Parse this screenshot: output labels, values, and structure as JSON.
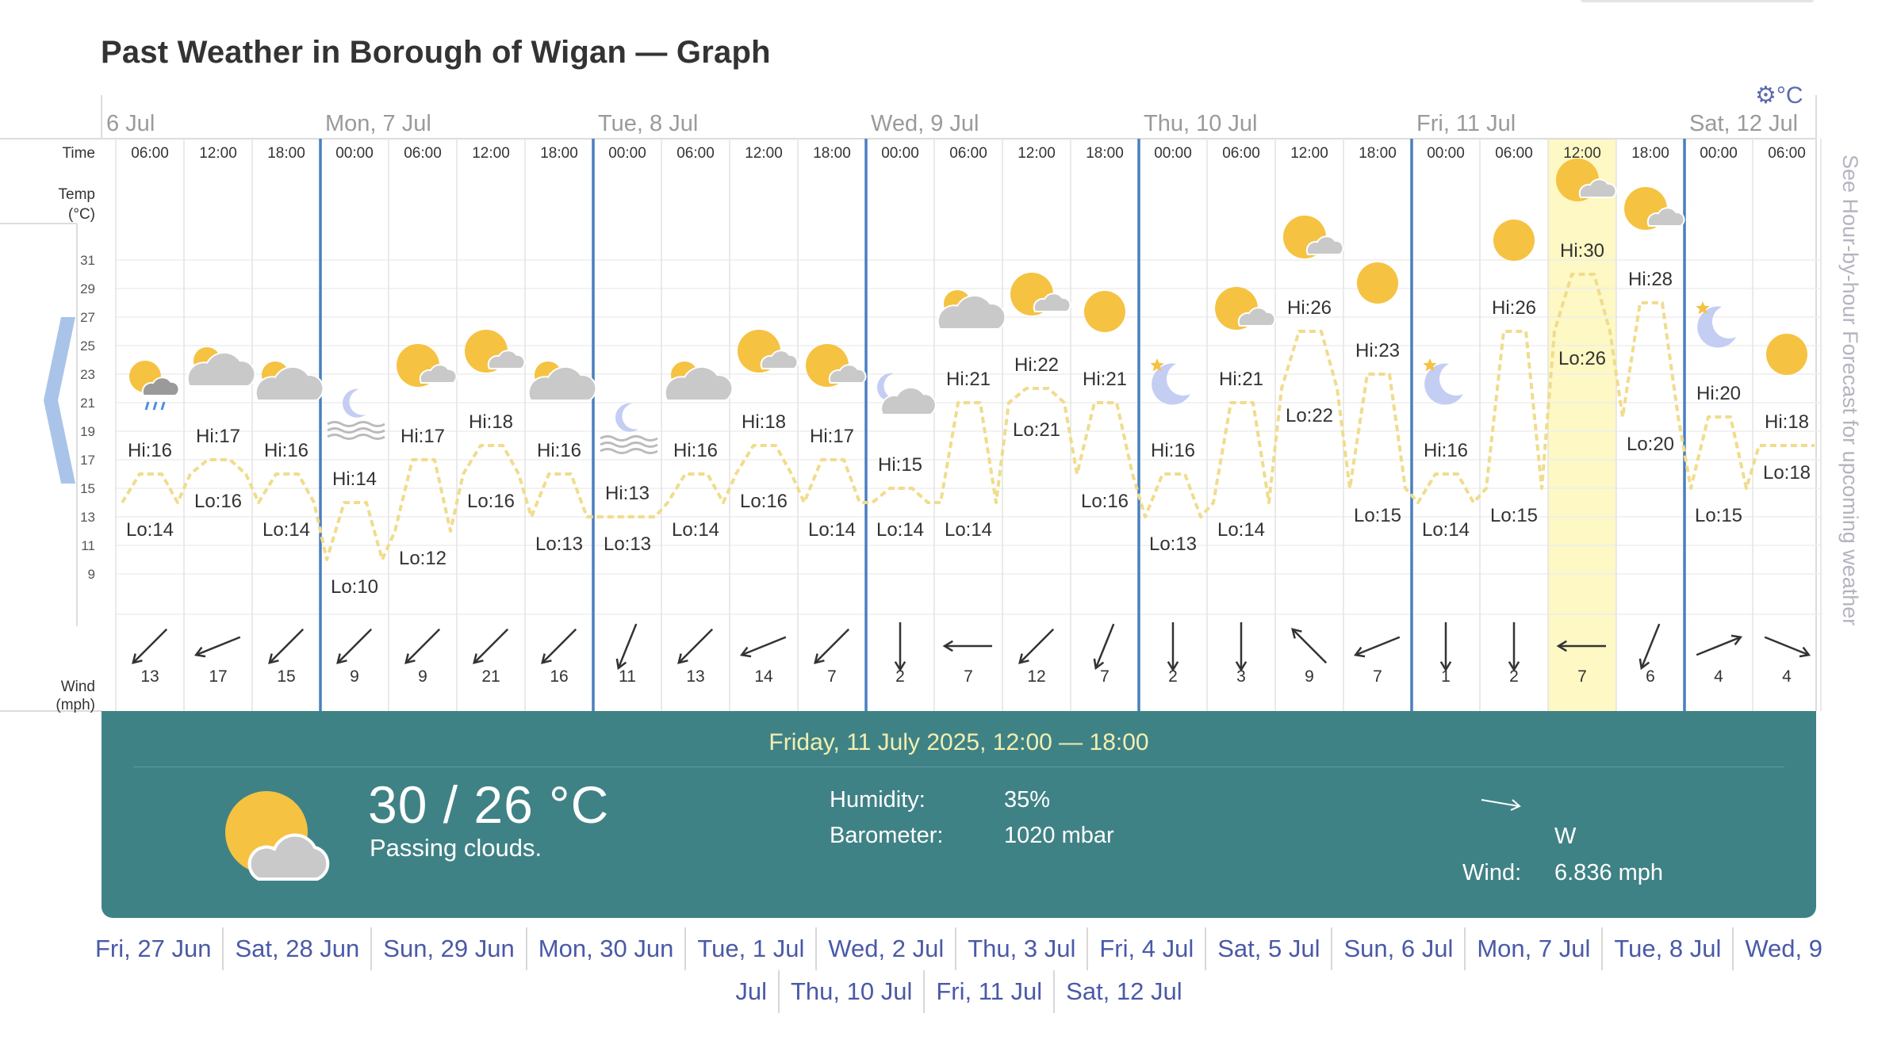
{
  "title": "Past Weather in Borough of Wigan — Graph",
  "unit_label": "°C",
  "side_link": "See Hour-by-hour Forecast for upcoming weather",
  "row_labels": {
    "time": "Time",
    "temp": "Temp",
    "temp_unit": "(°C)",
    "wind": "Wind",
    "wind_unit": "(mph)"
  },
  "days": [
    "6 Jul",
    "Mon, 7 Jul",
    "Tue, 8 Jul",
    "Wed, 9 Jul",
    "Thu, 10 Jul",
    "Fri, 11 Jul",
    "Sat, 12 Jul"
  ],
  "temp_ticks": [
    31,
    29,
    27,
    25,
    23,
    21,
    19,
    17,
    15,
    13,
    11,
    9
  ],
  "columns": [
    {
      "time": "06:00",
      "icon": "partly-sunny-rain-icon",
      "hi": "Hi:16",
      "lo": "Lo:14",
      "hi_t": 16,
      "lo_t": 14,
      "wind": "13",
      "dir": "SE"
    },
    {
      "time": "12:00",
      "icon": "cloud-sun-icon",
      "hi": "Hi:17",
      "lo": "Lo:16",
      "hi_t": 17,
      "lo_t": 16,
      "wind": "17",
      "dir": "ESE"
    },
    {
      "time": "18:00",
      "icon": "cloud-sun-icon",
      "hi": "Hi:16",
      "lo": "Lo:14",
      "hi_t": 16,
      "lo_t": 14,
      "wind": "15",
      "dir": "SE"
    },
    {
      "time": "00:00",
      "icon": "moon-fog-icon",
      "hi": "Hi:14",
      "lo": "Lo:10",
      "hi_t": 14,
      "lo_t": 10,
      "wind": "9",
      "dir": "SE"
    },
    {
      "time": "06:00",
      "icon": "sun-cloud-icon",
      "hi": "Hi:17",
      "lo": "Lo:12",
      "hi_t": 17,
      "lo_t": 12,
      "wind": "9",
      "dir": "SE"
    },
    {
      "time": "12:00",
      "icon": "sun-cloud-icon",
      "hi": "Hi:18",
      "lo": "Lo:16",
      "hi_t": 18,
      "lo_t": 16,
      "wind": "21",
      "dir": "SE"
    },
    {
      "time": "18:00",
      "icon": "cloud-sun-icon",
      "hi": "Hi:16",
      "lo": "Lo:13",
      "hi_t": 16,
      "lo_t": 13,
      "wind": "16",
      "dir": "SE"
    },
    {
      "time": "00:00",
      "icon": "moon-fog-icon",
      "hi": "Hi:13",
      "lo": "Lo:13",
      "hi_t": 13,
      "lo_t": 13,
      "wind": "11",
      "dir": "SSE"
    },
    {
      "time": "06:00",
      "icon": "cloud-sun-icon",
      "hi": "Hi:16",
      "lo": "Lo:14",
      "hi_t": 16,
      "lo_t": 14,
      "wind": "13",
      "dir": "SE"
    },
    {
      "time": "12:00",
      "icon": "sun-cloud-icon",
      "hi": "Hi:18",
      "lo": "Lo:16",
      "hi_t": 18,
      "lo_t": 16,
      "wind": "14",
      "dir": "ESE"
    },
    {
      "time": "18:00",
      "icon": "sun-cloud-icon",
      "hi": "Hi:17",
      "lo": "Lo:14",
      "hi_t": 17,
      "lo_t": 14,
      "wind": "7",
      "dir": "SE"
    },
    {
      "time": "00:00",
      "icon": "moon-cloud-icon",
      "hi": "Hi:15",
      "lo": "Lo:14",
      "hi_t": 15,
      "lo_t": 14,
      "wind": "2",
      "dir": "S"
    },
    {
      "time": "06:00",
      "icon": "cloud-sun-icon",
      "hi": "Hi:21",
      "lo": "Lo:14",
      "hi_t": 21,
      "lo_t": 14,
      "wind": "7",
      "dir": "E"
    },
    {
      "time": "12:00",
      "icon": "sun-cloud-icon",
      "hi": "Hi:22",
      "lo": "Lo:21",
      "hi_t": 22,
      "lo_t": 21,
      "wind": "12",
      "dir": "SE"
    },
    {
      "time": "18:00",
      "icon": "sun-icon",
      "hi": "Hi:21",
      "lo": "Lo:16",
      "hi_t": 21,
      "lo_t": 16,
      "wind": "7",
      "dir": "SSE"
    },
    {
      "time": "00:00",
      "icon": "moon-star-icon",
      "hi": "Hi:16",
      "lo": "Lo:13",
      "hi_t": 16,
      "lo_t": 13,
      "wind": "2",
      "dir": "S"
    },
    {
      "time": "06:00",
      "icon": "sun-cloud-icon",
      "hi": "Hi:21",
      "lo": "Lo:14",
      "hi_t": 21,
      "lo_t": 14,
      "wind": "3",
      "dir": "S"
    },
    {
      "time": "12:00",
      "icon": "sun-cloud-icon",
      "hi": "Hi:26",
      "lo": "Lo:22",
      "hi_t": 26,
      "lo_t": 22,
      "wind": "9",
      "dir": "NE"
    },
    {
      "time": "18:00",
      "icon": "sun-icon",
      "hi": "Hi:23",
      "lo": "Lo:15",
      "hi_t": 23,
      "lo_t": 15,
      "wind": "7",
      "dir": "ESE"
    },
    {
      "time": "00:00",
      "icon": "moon-star-icon",
      "hi": "Hi:16",
      "lo": "Lo:14",
      "hi_t": 16,
      "lo_t": 14,
      "wind": "1",
      "dir": "S"
    },
    {
      "time": "06:00",
      "icon": "sun-icon",
      "hi": "Hi:26",
      "lo": "Lo:15",
      "hi_t": 26,
      "lo_t": 15,
      "wind": "2",
      "dir": "S"
    },
    {
      "time": "12:00",
      "icon": "sun-cloud-icon",
      "hi": "Hi:30",
      "lo": "Lo:26",
      "hi_t": 30,
      "lo_t": 26,
      "wind": "7",
      "dir": "E",
      "selected": true
    },
    {
      "time": "18:00",
      "icon": "sun-cloud-icon",
      "hi": "Hi:28",
      "lo": "Lo:20",
      "hi_t": 28,
      "lo_t": 20,
      "wind": "6",
      "dir": "SSE"
    },
    {
      "time": "00:00",
      "icon": "moon-star-icon",
      "hi": "Hi:20",
      "lo": "Lo:15",
      "hi_t": 20,
      "lo_t": 15,
      "wind": "4",
      "dir": "WSW"
    },
    {
      "time": "06:00",
      "icon": "sun-icon",
      "hi": "Hi:18",
      "lo": "Lo:18",
      "hi_t": 18,
      "lo_t": 18,
      "wind": "4",
      "dir": "WNW"
    }
  ],
  "details": {
    "date": "Friday, 11 July 2025, 12:00 — 18:00",
    "temp": "30 / 26 °C",
    "desc": "Passing clouds.",
    "humidity_label": "Humidity:",
    "humidity": "35%",
    "barometer_label": "Barometer:",
    "barometer": "1020 mbar",
    "wind_dir": "W",
    "wind_label": "Wind:",
    "wind": "6.836 mph",
    "icon": "sun-cloud-icon"
  },
  "date_links": {
    "row1": [
      "Fri, 27 Jun",
      "Sat, 28 Jun",
      "Sun, 29 Jun",
      "Mon, 30 Jun",
      "Tue, 1 Jul",
      "Wed, 2 Jul",
      "Thu, 3 Jul",
      "Fri, 4 Jul",
      "Sat, 5 Jul",
      "Sun, 6 Jul",
      "Mon, 7 Jul",
      "Tue, 8 Jul",
      "Wed, 9"
    ],
    "row2": [
      "Jul",
      "Thu, 10 Jul",
      "Fri, 11 Jul",
      "Sat, 12 Jul"
    ]
  },
  "colors": {
    "accent": "#3f8286",
    "grid_blue": "#4a7fbf",
    "sun": "#f5c242",
    "cloud": "#c9c9c9",
    "moon": "#c4cdf2",
    "highlight": "#fdf8c4",
    "temp_line": "#f0dc8c"
  }
}
